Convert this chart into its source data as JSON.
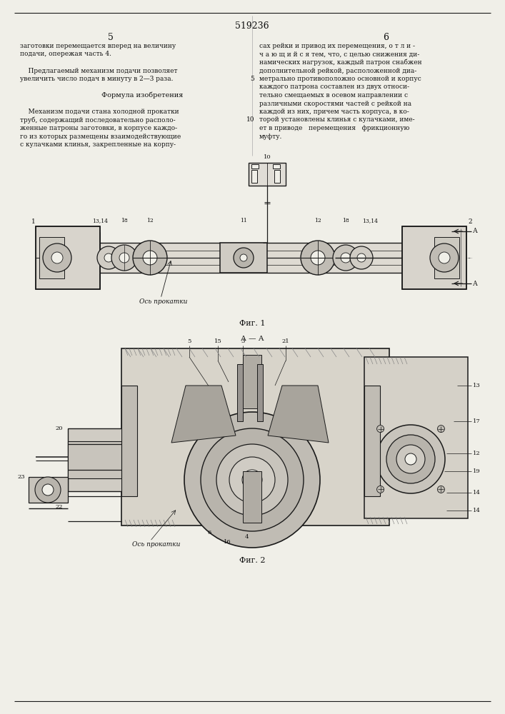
{
  "page_number": "519236",
  "col_left": "5",
  "col_right": "6",
  "fig1_label": "Фиг. 1",
  "fig2_label": "Фиг. 2",
  "ось_прокатки": "Ось прокатки",
  "section_label": "А — А",
  "bg_color": "#f0efe8",
  "line_color": "#1a1a1a",
  "text_color": "#111111",
  "left_col_lines": [
    "заготовки перемещается вперед на величину",
    "подачи, опережая часть 4.",
    "",
    "    Предлагаемый механизм подачи позволяет",
    "увеличить число подач в минуту в 2—3 раза.",
    "",
    "         Формула изобретения",
    "",
    "    Механизм подачи стана холодной прокатки",
    "труб, содержащий последовательно располо-",
    "женные патроны заготовки, в корпусе каждо-",
    "го из которых размещены взаимодействующие",
    "с кулачками клинья, закрепленные на корпу-"
  ],
  "right_col_lines": [
    "сах рейки и привод их перемещения, о т л и -",
    "ч а ю щ и й с я тем, что, с целью снижения ди-",
    "намических нагрузок, каждый патрон снабжен",
    "дополнительной рейкой, расположенной диа-",
    "метрально противоположно основной и корпус",
    "каждого патрона составлен из двух относи-",
    "тельно смещаемых в осевом направлении с",
    "различными скоростями частей с рейкой на",
    "каждой из них, причем часть корпуса, в ко-",
    "торой установлены клинья с кулачками, име-",
    "ет в приводе   перемещения   фрикционную",
    "муфту."
  ],
  "right_col_line_numbers": [
    null,
    null,
    null,
    null,
    5,
    null,
    null,
    null,
    null,
    10,
    null,
    null
  ]
}
